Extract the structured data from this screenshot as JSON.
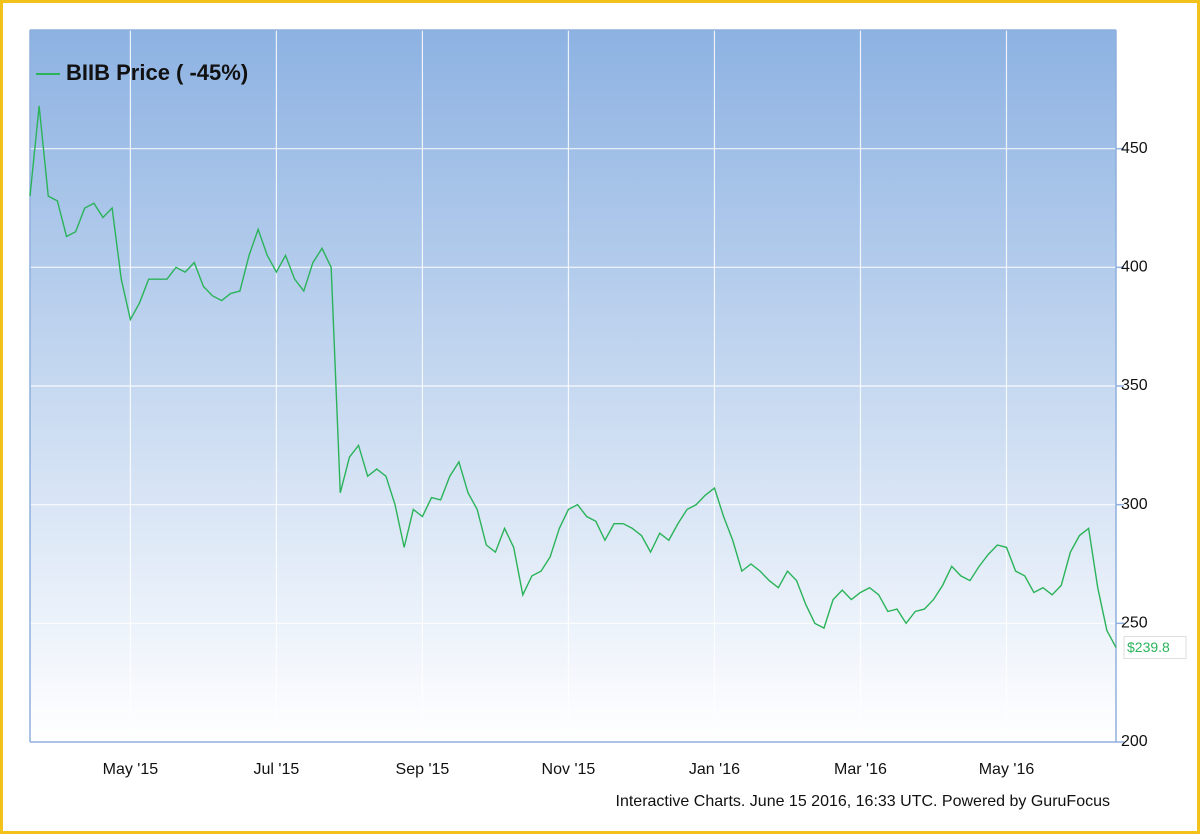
{
  "chart_data": {
    "type": "line",
    "credit": "Interactive Charts. June 15 2016, 16:33 UTC. Powered by GuruFocus",
    "end_label": "$239.8",
    "categories": [
      null,
      null,
      null,
      null,
      null,
      null,
      null,
      null,
      null,
      null,
      null,
      "May '15",
      null,
      null,
      null,
      null,
      null,
      null,
      null,
      null,
      null,
      null,
      null,
      null,
      null,
      null,
      null,
      "Jul '15",
      null,
      null,
      null,
      null,
      null,
      null,
      null,
      null,
      null,
      null,
      null,
      null,
      null,
      null,
      null,
      "Sep '15",
      null,
      null,
      null,
      null,
      null,
      null,
      null,
      null,
      null,
      null,
      null,
      null,
      null,
      null,
      null,
      "Nov '15",
      null,
      null,
      null,
      null,
      null,
      null,
      null,
      null,
      null,
      null,
      null,
      null,
      null,
      null,
      null,
      "Jan '16",
      null,
      null,
      null,
      null,
      null,
      null,
      null,
      null,
      null,
      null,
      null,
      null,
      null,
      null,
      null,
      "Mar '16",
      null,
      null,
      null,
      null,
      null,
      null,
      null,
      null,
      null,
      null,
      null,
      null,
      null,
      null,
      null,
      "May '16",
      null,
      null,
      null,
      null,
      null,
      null,
      null,
      null,
      null,
      null,
      null,
      null
    ],
    "series": [
      {
        "name": "BIIB Price ( -45%)",
        "color": "#2bb35a",
        "values": [
          430,
          468,
          430,
          428,
          413,
          415,
          425,
          427,
          421,
          425,
          395,
          378,
          385,
          395,
          395,
          395,
          400,
          398,
          402,
          392,
          388,
          386,
          389,
          390,
          405,
          416,
          405,
          398,
          405,
          395,
          390,
          402,
          408,
          400,
          305,
          320,
          325,
          312,
          315,
          312,
          300,
          282,
          298,
          295,
          303,
          302,
          312,
          318,
          305,
          298,
          283,
          280,
          290,
          282,
          262,
          270,
          272,
          278,
          290,
          298,
          300,
          295,
          293,
          285,
          292,
          292,
          290,
          287,
          280,
          288,
          285,
          292,
          298,
          300,
          304,
          307,
          295,
          285,
          272,
          275,
          272,
          268,
          265,
          272,
          268,
          258,
          250,
          248,
          260,
          264,
          260,
          263,
          265,
          262,
          255,
          256,
          250,
          255,
          256,
          260,
          266,
          274,
          270,
          268,
          274,
          279,
          283,
          282,
          272,
          270,
          263,
          265,
          262,
          266,
          280,
          287,
          290,
          265,
          247,
          239.8
        ]
      }
    ],
    "ylim": [
      200,
      500
    ],
    "yticks": [
      200,
      250,
      300,
      350,
      400,
      450
    ],
    "grid": true,
    "legend": "top-left"
  }
}
